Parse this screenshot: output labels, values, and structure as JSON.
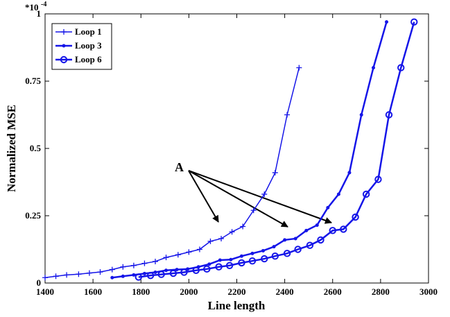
{
  "chart_data": {
    "type": "line",
    "x_label": "Line length",
    "y_label": "Normalized MSE",
    "y_exponent_base": "*10",
    "y_exponent": "-4",
    "annotation": "A",
    "xlim": [
      1400,
      3000
    ],
    "xticks": [
      1400,
      1600,
      1800,
      2000,
      2200,
      2400,
      2600,
      2800,
      3000
    ],
    "ylim": [
      0,
      1
    ],
    "yticks": [
      0,
      0.25,
      0.5,
      0.75,
      1
    ],
    "grid": false,
    "legend": "upper left",
    "series": [
      {
        "name": "Loop 1",
        "color": "#1515e8",
        "marker": "plus",
        "x": [
          1400,
          1445,
          1490,
          1540,
          1585,
          1630,
          1680,
          1725,
          1770,
          1815,
          1860,
          1905,
          1955,
          2000,
          2045,
          2090,
          2135,
          2180,
          2225,
          2270,
          2315,
          2360,
          2410,
          2460
        ],
        "values": [
          0.02,
          0.025,
          0.03,
          0.033,
          0.037,
          0.041,
          0.05,
          0.06,
          0.065,
          0.073,
          0.08,
          0.095,
          0.105,
          0.115,
          0.125,
          0.155,
          0.165,
          0.19,
          0.21,
          0.27,
          0.33,
          0.41,
          0.625,
          0.8
        ]
      },
      {
        "name": "Loop 3",
        "color": "#1515e8",
        "marker": "dot",
        "x": [
          1680,
          1725,
          1770,
          1815,
          1860,
          1905,
          1950,
          1995,
          2040,
          2085,
          2130,
          2175,
          2220,
          2265,
          2310,
          2355,
          2400,
          2445,
          2490,
          2535,
          2580,
          2625,
          2670,
          2720,
          2770,
          2825
        ],
        "values": [
          0.02,
          0.025,
          0.03,
          0.035,
          0.04,
          0.047,
          0.05,
          0.052,
          0.06,
          0.07,
          0.085,
          0.087,
          0.1,
          0.11,
          0.12,
          0.135,
          0.16,
          0.165,
          0.195,
          0.215,
          0.28,
          0.33,
          0.41,
          0.625,
          0.8,
          0.97
        ]
      },
      {
        "name": "Loop 6",
        "color": "#1515e8",
        "marker": "circle",
        "x": [
          1790,
          1840,
          1885,
          1935,
          1980,
          2030,
          2075,
          2125,
          2170,
          2220,
          2265,
          2315,
          2360,
          2410,
          2455,
          2505,
          2550,
          2600,
          2645,
          2695,
          2740,
          2790,
          2835,
          2885,
          2940
        ],
        "values": [
          0.022,
          0.028,
          0.032,
          0.036,
          0.04,
          0.047,
          0.052,
          0.06,
          0.065,
          0.075,
          0.082,
          0.09,
          0.1,
          0.11,
          0.125,
          0.14,
          0.16,
          0.195,
          0.2,
          0.245,
          0.33,
          0.385,
          0.625,
          0.8,
          0.97
        ]
      }
    ]
  }
}
